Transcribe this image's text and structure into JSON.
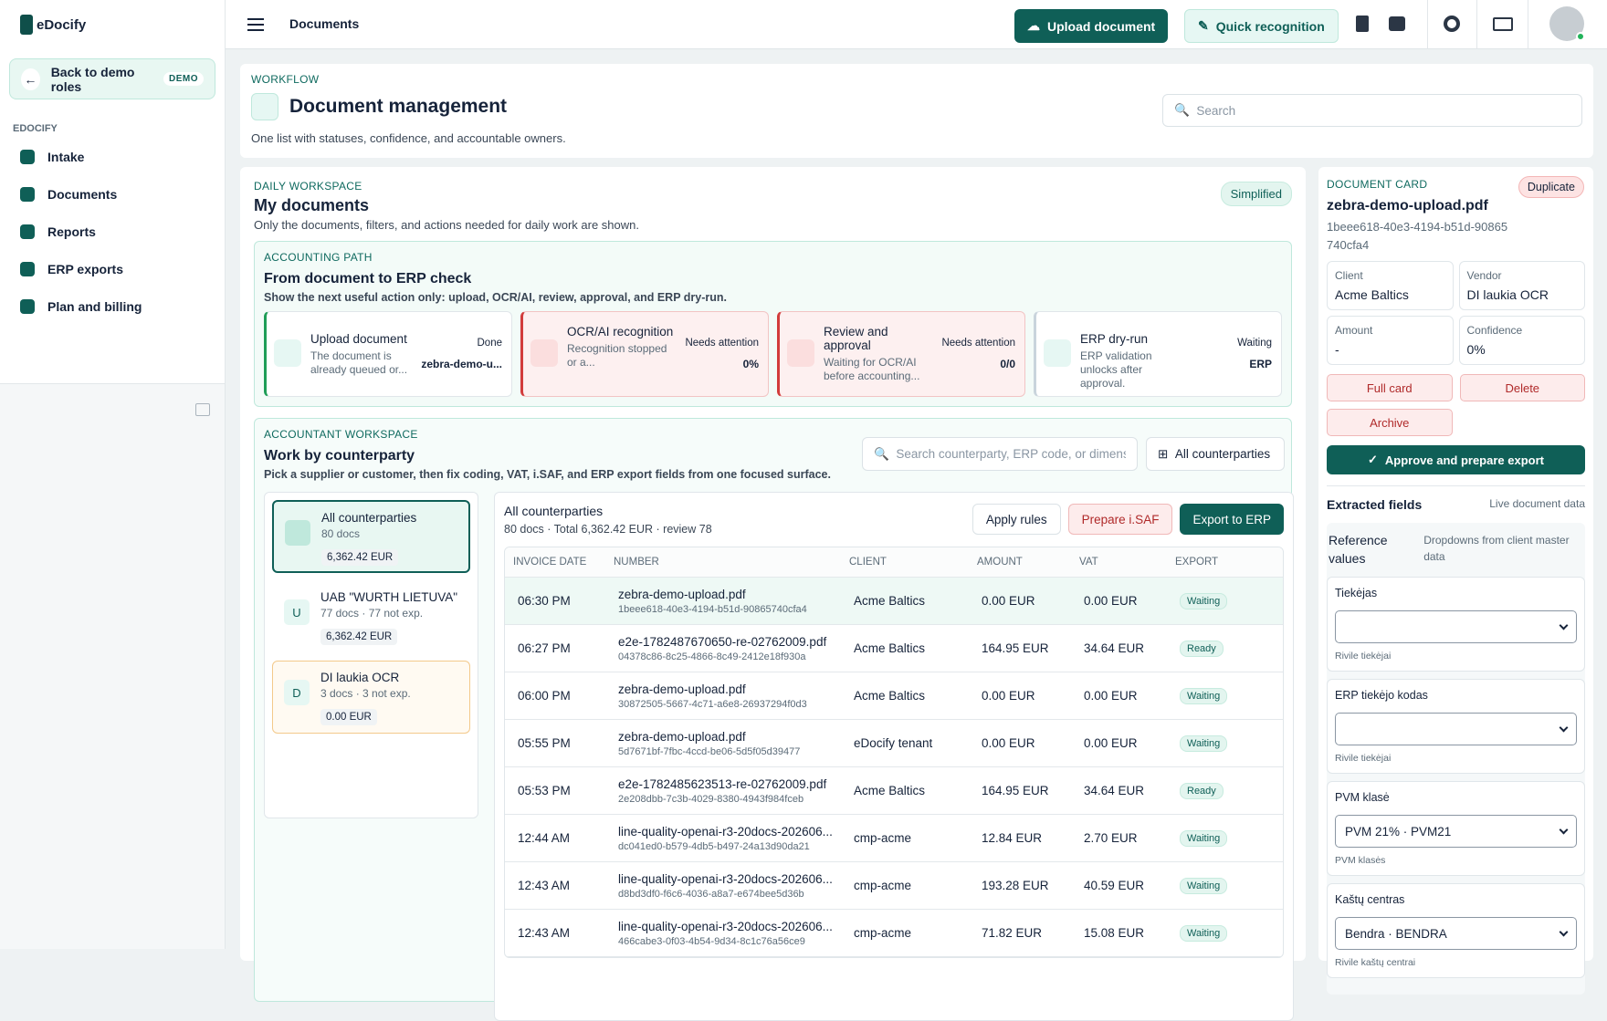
{
  "sidebar": {
    "brand": "eDocify",
    "back": "Back to demo roles",
    "badge": "DEMO",
    "section": "EDOCIFY",
    "nav": [
      "Intake",
      "Documents",
      "Reports",
      "ERP exports",
      "Plan and billing"
    ]
  },
  "topbar": {
    "title": "Documents",
    "upload": "Upload document",
    "quick": "Quick recognition"
  },
  "header": {
    "eyebrow": "WORKFLOW",
    "title": "Document management",
    "subtitle": "One list with statuses, confidence, and accountable owners.",
    "search": "Search"
  },
  "workspace": {
    "eyebrow": "DAILY WORKSPACE",
    "title": "My documents",
    "subtitle": "Only the documents, filters, and actions needed for daily work are shown.",
    "mode": "Simplified"
  },
  "path": {
    "eyebrow": "ACCOUNTING PATH",
    "title": "From document to ERP check",
    "subtitle": "Show the next useful action only: upload, OCR/AI, review, approval, and ERP dry-run.",
    "steps": [
      {
        "title": "Upload document",
        "text": "The document is already queued or...",
        "status": "Done",
        "value": "zebra-demo-u...",
        "color": "#1f9d57"
      },
      {
        "title": "OCR/AI recognition",
        "text": "Recognition stopped or a...",
        "status": "Needs attention",
        "value": "0%",
        "color": "#d23c3c"
      },
      {
        "title": "Review and approval",
        "text": "Waiting for OCR/AI before accounting...",
        "status": "Needs attention",
        "value": "0/0",
        "color": "#d23c3c"
      },
      {
        "title": "ERP dry-run",
        "text": "ERP validation unlocks after approval.",
        "status": "Waiting",
        "value": "ERP",
        "color": "#c9d4dc"
      }
    ]
  },
  "accountant": {
    "eyebrow": "ACCOUNTANT WORKSPACE",
    "title": "Work by counterparty",
    "subtitle": "Pick a supplier or customer, then fix coding, VAT, i.SAF, and ERP export fields from one focused surface.",
    "search": "Search counterparty, ERP code, or dimensic",
    "filter": "All counterparties",
    "counterparties": [
      {
        "name": "All counterparties",
        "meta": "80 docs",
        "amount": "6,362.42 EUR"
      },
      {
        "initial": "U",
        "name": "UAB \"WURTH LIETUVA\"",
        "meta": "77 docs · 77 not exp.",
        "amount": "6,362.42 EUR"
      },
      {
        "initial": "D",
        "name": "DI laukia OCR",
        "meta": "3 docs · 3 not exp.",
        "amount": "0.00 EUR"
      }
    ],
    "list": {
      "title": "All counterparties",
      "summary": "80 docs · Total 6,362.42 EUR · review 78",
      "actions": [
        "Apply rules",
        "Prepare i.SAF",
        "Export to ERP"
      ],
      "columns": [
        "INVOICE DATE",
        "NUMBER",
        "CLIENT",
        "AMOUNT",
        "VAT",
        "EXPORT"
      ],
      "rows": [
        {
          "time": "06:30 PM",
          "number": "zebra-demo-upload.pdf",
          "id": "1beee618-40e3-4194-b51d-90865740cfa4",
          "client": "Acme Baltics",
          "amount": "0.00 EUR",
          "vat": "0.00 EUR",
          "export": "Waiting"
        },
        {
          "time": "06:27 PM",
          "number": "e2e-1782487670650-re-02762009.pdf",
          "id": "04378c86-8c25-4866-8c49-2412e18f930a",
          "client": "Acme Baltics",
          "amount": "164.95 EUR",
          "vat": "34.64 EUR",
          "export": "Ready"
        },
        {
          "time": "06:00 PM",
          "number": "zebra-demo-upload.pdf",
          "id": "30872505-5667-4c71-a6e8-26937294f0d3",
          "client": "Acme Baltics",
          "amount": "0.00 EUR",
          "vat": "0.00 EUR",
          "export": "Waiting"
        },
        {
          "time": "05:55 PM",
          "number": "zebra-demo-upload.pdf",
          "id": "5d7671bf-7fbc-4ccd-be06-5d5f05d39477",
          "client": "eDocify tenant",
          "amount": "0.00 EUR",
          "vat": "0.00 EUR",
          "export": "Waiting"
        },
        {
          "time": "05:53 PM",
          "number": "e2e-1782485623513-re-02762009.pdf",
          "id": "2e208dbb-7c3b-4029-8380-4943f984fceb",
          "client": "Acme Baltics",
          "amount": "164.95 EUR",
          "vat": "34.64 EUR",
          "export": "Ready"
        },
        {
          "time": "12:44 AM",
          "number": "line-quality-openai-r3-20docs-202606...",
          "id": "dc041ed0-b579-4db5-b497-24a13d90da21",
          "client": "cmp-acme",
          "amount": "12.84 EUR",
          "vat": "2.70 EUR",
          "export": "Waiting"
        },
        {
          "time": "12:43 AM",
          "number": "line-quality-openai-r3-20docs-202606...",
          "id": "d8bd3df0-f6c6-4036-a8a7-e674bee5d36b",
          "client": "cmp-acme",
          "amount": "193.28 EUR",
          "vat": "40.59 EUR",
          "export": "Waiting"
        },
        {
          "time": "12:43 AM",
          "number": "line-quality-openai-r3-20docs-202606...",
          "id": "466cabe3-0f03-4b54-9d34-8c1c76a56ce9",
          "client": "cmp-acme",
          "amount": "71.82 EUR",
          "vat": "15.08 EUR",
          "export": "Waiting"
        }
      ]
    }
  },
  "card": {
    "eyebrow": "DOCUMENT CARD",
    "badge": "Duplicate",
    "title": "zebra-demo-upload.pdf",
    "id": "1beee618-40e3-4194-b51d-90865740cfa4",
    "fields": [
      {
        "label": "Client",
        "value": "Acme Baltics"
      },
      {
        "label": "Vendor",
        "value": "DI laukia OCR"
      },
      {
        "label": "Amount",
        "value": "-"
      },
      {
        "label": "Confidence",
        "value": "0%"
      }
    ],
    "buttons": [
      "Full card",
      "Delete",
      "Archive"
    ],
    "approve": "Approve and prepare export",
    "extracted": "Extracted fields",
    "live": "Live document data",
    "reference": "Reference values",
    "refnote": "Dropdowns from client master data",
    "selects": [
      {
        "label": "Tiekėjas",
        "hint": "Rivile tiekėjai"
      },
      {
        "label": "ERP tiekėjo kodas",
        "hint": "Rivile tiekėjai"
      },
      {
        "label": "PVM klasė",
        "value": "PVM 21% · PVM21",
        "hint": "PVM klasės"
      },
      {
        "label": "Kaštų centras",
        "value": "Bendra · BENDRA",
        "hint": "Rivile kaštų centrai"
      }
    ]
  }
}
